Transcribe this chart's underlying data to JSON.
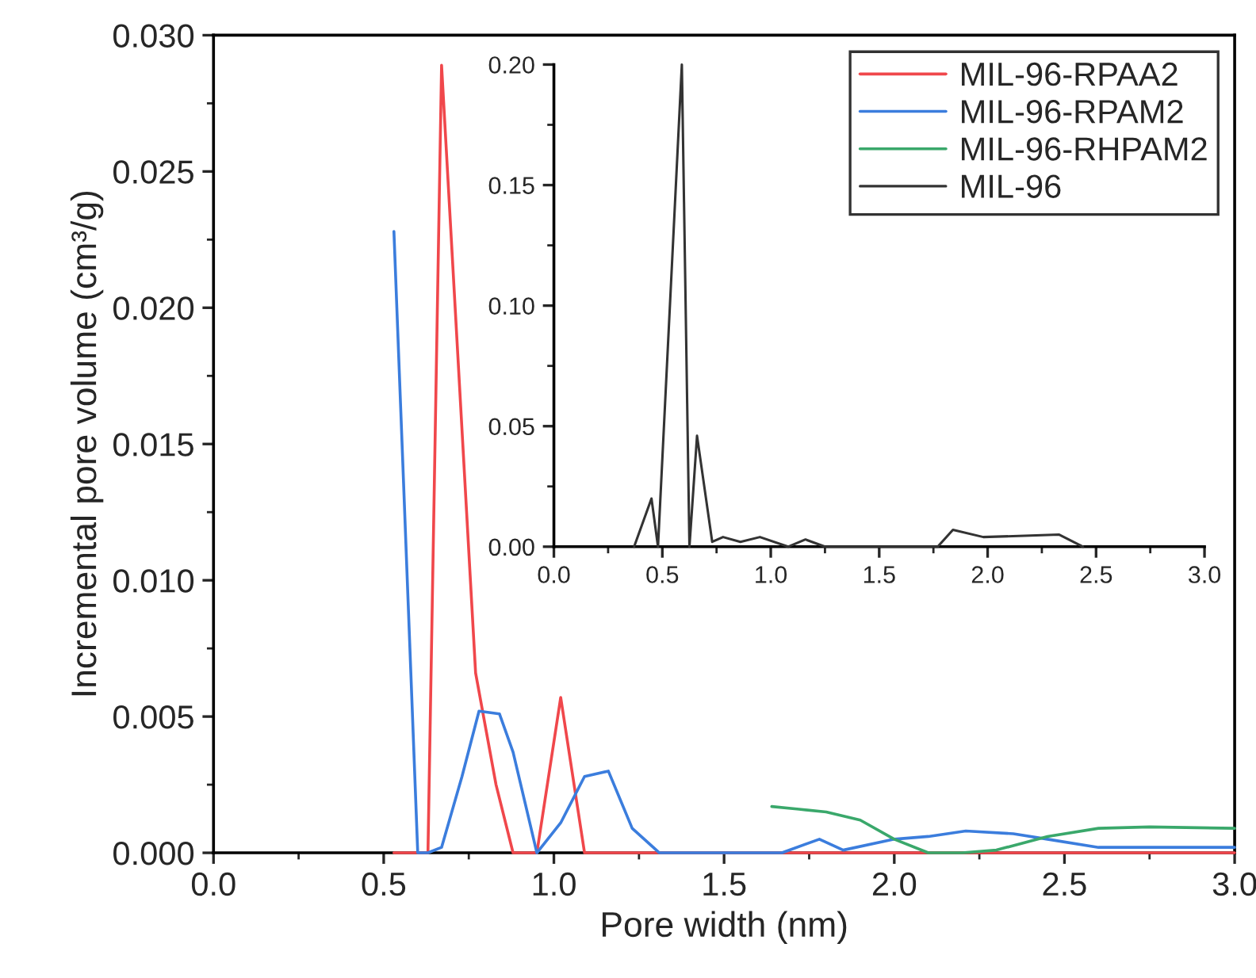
{
  "chart_data": [
    {
      "type": "line",
      "xlabel": "Pore width (nm)",
      "ylabel": "Incremental pore volume (cm³/g)",
      "xlim": [
        0,
        3.0
      ],
      "ylim": [
        0,
        0.03
      ],
      "xticks": [
        {
          "value": 0,
          "label": "0.0"
        },
        {
          "value": 0.5,
          "label": "0.5"
        },
        {
          "value": 1.0,
          "label": "1.0"
        },
        {
          "value": 1.5,
          "label": "1.5"
        },
        {
          "value": 2.0,
          "label": "2.0"
        },
        {
          "value": 2.5,
          "label": "2.5"
        },
        {
          "value": 3.0,
          "label": "3.0"
        }
      ],
      "yticks": [
        {
          "value": 0,
          "label": "0.000"
        },
        {
          "value": 0.005,
          "label": "0.005"
        },
        {
          "value": 0.01,
          "label": "0.010"
        },
        {
          "value": 0.015,
          "label": "0.015"
        },
        {
          "value": 0.02,
          "label": "0.020"
        },
        {
          "value": 0.025,
          "label": "0.025"
        },
        {
          "value": 0.03,
          "label": "0.030"
        }
      ],
      "legend": "top right",
      "grid": false,
      "series": [
        {
          "name": "MIL-96-RPAA2",
          "color": "#f0474b",
          "x": [
            0.53,
            0.63,
            0.67,
            0.77,
            0.83,
            0.88,
            0.95,
            1.02,
            1.09,
            1.5,
            2.0,
            2.5,
            3.0
          ],
          "values": [
            0,
            0,
            0.0289,
            0.0066,
            0.0025,
            0,
            0,
            0.0057,
            0,
            0,
            0,
            0,
            0
          ]
        },
        {
          "name": "MIL-96-RPAM2",
          "color": "#3b7ddd",
          "x": [
            0.53,
            0.6,
            0.63,
            0.67,
            0.73,
            0.78,
            0.84,
            0.88,
            0.95,
            1.02,
            1.09,
            1.16,
            1.23,
            1.31,
            1.67,
            1.78,
            1.85,
            2.0,
            2.1,
            2.21,
            2.35,
            2.45,
            2.6,
            3.0
          ],
          "values": [
            0.0228,
            0,
            0,
            0.0002,
            0.0028,
            0.0052,
            0.0051,
            0.0037,
            0,
            0.0011,
            0.0028,
            0.003,
            0.0009,
            0,
            0,
            0.0005,
            0.0001,
            0.0005,
            0.0006,
            0.0008,
            0.0007,
            0.0005,
            0.0002,
            0.0002
          ]
        },
        {
          "name": "MIL-96-RHPAM2",
          "color": "#3aa86b",
          "x": [
            1.64,
            1.72,
            1.8,
            1.9,
            2.0,
            2.1,
            2.2,
            2.3,
            2.45,
            2.6,
            2.75,
            3.0
          ],
          "values": [
            0.0017,
            0.0016,
            0.0015,
            0.0012,
            0.0005,
            0,
            0,
            0.0001,
            0.0006,
            0.0009,
            0.00095,
            0.0009
          ]
        }
      ]
    },
    {
      "type": "line",
      "xlim": [
        0,
        3.0
      ],
      "ylim": [
        0,
        0.2
      ],
      "xticks": [
        {
          "value": 0,
          "label": "0.0"
        },
        {
          "value": 0.5,
          "label": "0.5"
        },
        {
          "value": 1.0,
          "label": "1.0"
        },
        {
          "value": 1.5,
          "label": "1.5"
        },
        {
          "value": 2.0,
          "label": "2.0"
        },
        {
          "value": 2.5,
          "label": "2.5"
        },
        {
          "value": 3.0,
          "label": "3.0"
        }
      ],
      "yticks": [
        {
          "value": 0,
          "label": "0.00"
        },
        {
          "value": 0.05,
          "label": "0.05"
        },
        {
          "value": 0.1,
          "label": "0.10"
        },
        {
          "value": 0.15,
          "label": "0.15"
        },
        {
          "value": 0.2,
          "label": "0.20"
        }
      ],
      "grid": false,
      "series": [
        {
          "name": "MIL-96",
          "color": "#333333",
          "x": [
            0.37,
            0.45,
            0.48,
            0.59,
            0.625,
            0.66,
            0.73,
            0.78,
            0.86,
            0.95,
            1.08,
            1.16,
            1.25,
            1.77,
            1.84,
            1.98,
            2.33,
            2.44
          ],
          "values": [
            0,
            0.02,
            0,
            0.2,
            0,
            0.046,
            0.002,
            0.004,
            0.002,
            0.004,
            0,
            0.003,
            0,
            0,
            0.007,
            0.004,
            0.005,
            0
          ]
        }
      ]
    }
  ]
}
